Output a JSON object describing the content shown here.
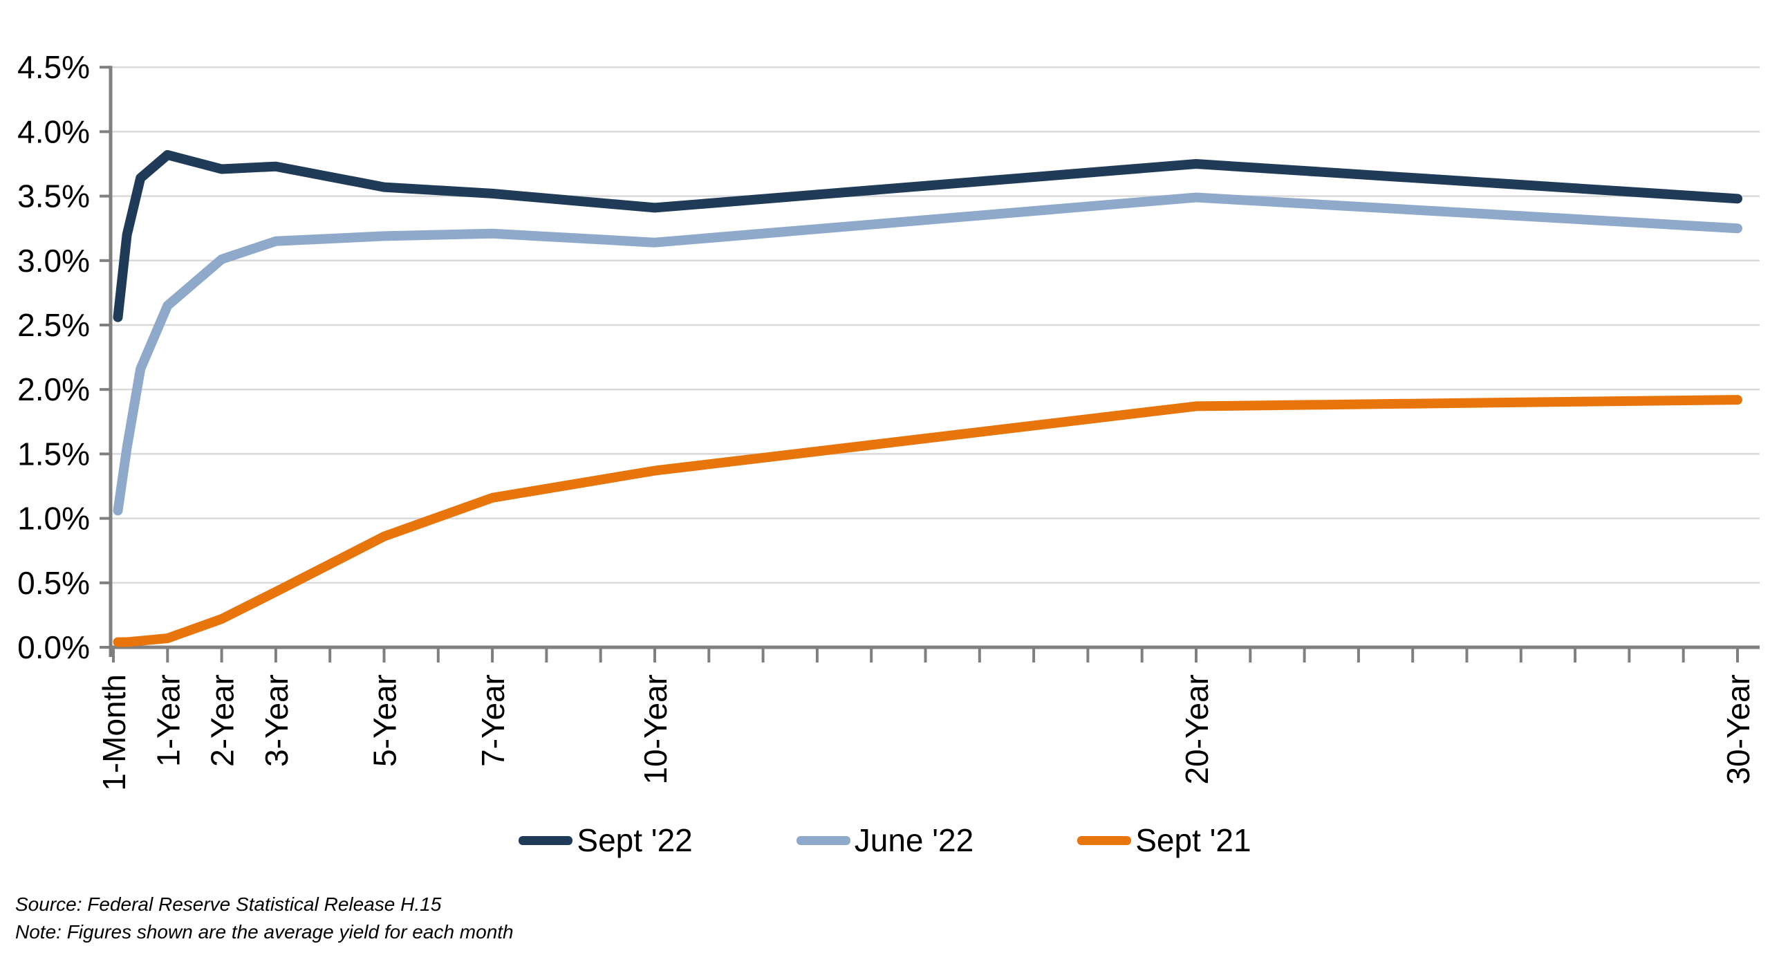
{
  "chart_data": {
    "type": "line",
    "title": "",
    "xlabel": "",
    "ylabel": "",
    "grid": "horizontal",
    "legend_position": "bottom",
    "x_axis": {
      "unit": "maturity",
      "scale": "linear-years",
      "range_years": [
        0,
        30
      ],
      "minor_tick_step_years": 1,
      "labeled_ticks": [
        {
          "label": "1-Month",
          "year": 0
        },
        {
          "label": "1-Year",
          "year": 1
        },
        {
          "label": "2-Year",
          "year": 2
        },
        {
          "label": "3-Year",
          "year": 3
        },
        {
          "label": "5-Year",
          "year": 5
        },
        {
          "label": "7-Year",
          "year": 7
        },
        {
          "label": "10-Year",
          "year": 10
        },
        {
          "label": "20-Year",
          "year": 20
        },
        {
          "label": "30-Year",
          "year": 30
        }
      ]
    },
    "y_axis": {
      "min": 0,
      "max": 4.5,
      "step": 0.5,
      "tick_values": [
        4.5,
        4.0,
        3.5,
        3.0,
        2.5,
        2.0,
        1.5,
        1.0,
        0.5,
        0.0
      ],
      "tick_labels": [
        "4.5%",
        "4.0%",
        "3.5%",
        "3.0%",
        "2.5%",
        "2.0%",
        "1.5%",
        "1.0%",
        "0.5%",
        "0.0%"
      ]
    },
    "x_years": [
      0.083,
      0.25,
      0.5,
      1,
      2,
      3,
      5,
      7,
      10,
      20,
      30
    ],
    "series": [
      {
        "name": "Sept '22",
        "color": "#1F3B57",
        "values": [
          2.56,
          3.2,
          3.64,
          3.82,
          3.71,
          3.73,
          3.57,
          3.52,
          3.41,
          3.75,
          3.48
        ]
      },
      {
        "name": "June '22",
        "color": "#8FA9CA",
        "values": [
          1.06,
          1.55,
          2.16,
          2.65,
          3.01,
          3.15,
          3.19,
          3.21,
          3.14,
          3.49,
          3.25
        ]
      },
      {
        "name": "Sept '21",
        "color": "#E8750C",
        "values": [
          0.04,
          0.04,
          0.05,
          0.07,
          0.22,
          0.43,
          0.86,
          1.16,
          1.37,
          1.87,
          1.92
        ]
      }
    ]
  },
  "footer": {
    "source": "Source: Federal Reserve Statistical Release H.15",
    "note": "Note: Figures shown are the average yield for each month"
  },
  "colors": {
    "background": "#FFFFFF",
    "gridline": "#D9D9D9",
    "axis": "#7F7F7F",
    "text": "#000000"
  }
}
